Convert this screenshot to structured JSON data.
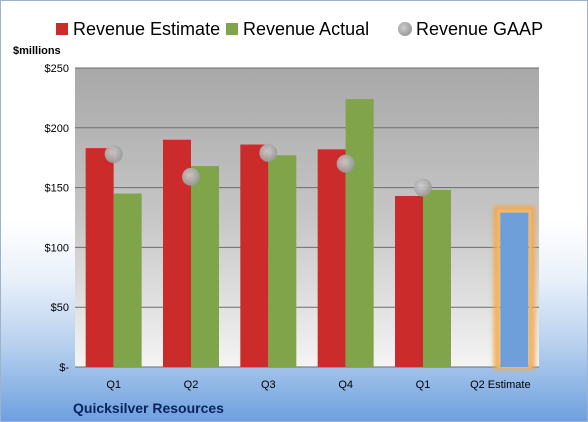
{
  "chart_data": {
    "type": "bar",
    "categories": [
      "Q1",
      "Q2",
      "Q3",
      "Q4",
      "Q1",
      "Q2 Estimate"
    ],
    "series": [
      {
        "name": "Revenue Estimate",
        "values": [
          183,
          190,
          186,
          182,
          143,
          null
        ],
        "color": "#cc2b2b"
      },
      {
        "name": "Revenue Actual",
        "values": [
          145,
          168,
          177,
          224,
          148,
          129
        ],
        "color": "#7fa44a",
        "highlight_color": "#6f9fd8"
      },
      {
        "name": "Revenue GAAP",
        "values": [
          178,
          159,
          179,
          170,
          150,
          null
        ],
        "color": "#a9a9a9",
        "marker": "circle"
      }
    ],
    "ylabel": "$millions",
    "yticks": [
      "$-",
      "$50",
      "$100",
      "$150",
      "$200",
      "$250"
    ],
    "ylim": [
      0,
      250
    ],
    "grid": true,
    "legend": "top",
    "footer": "Quicksilver Resources"
  }
}
